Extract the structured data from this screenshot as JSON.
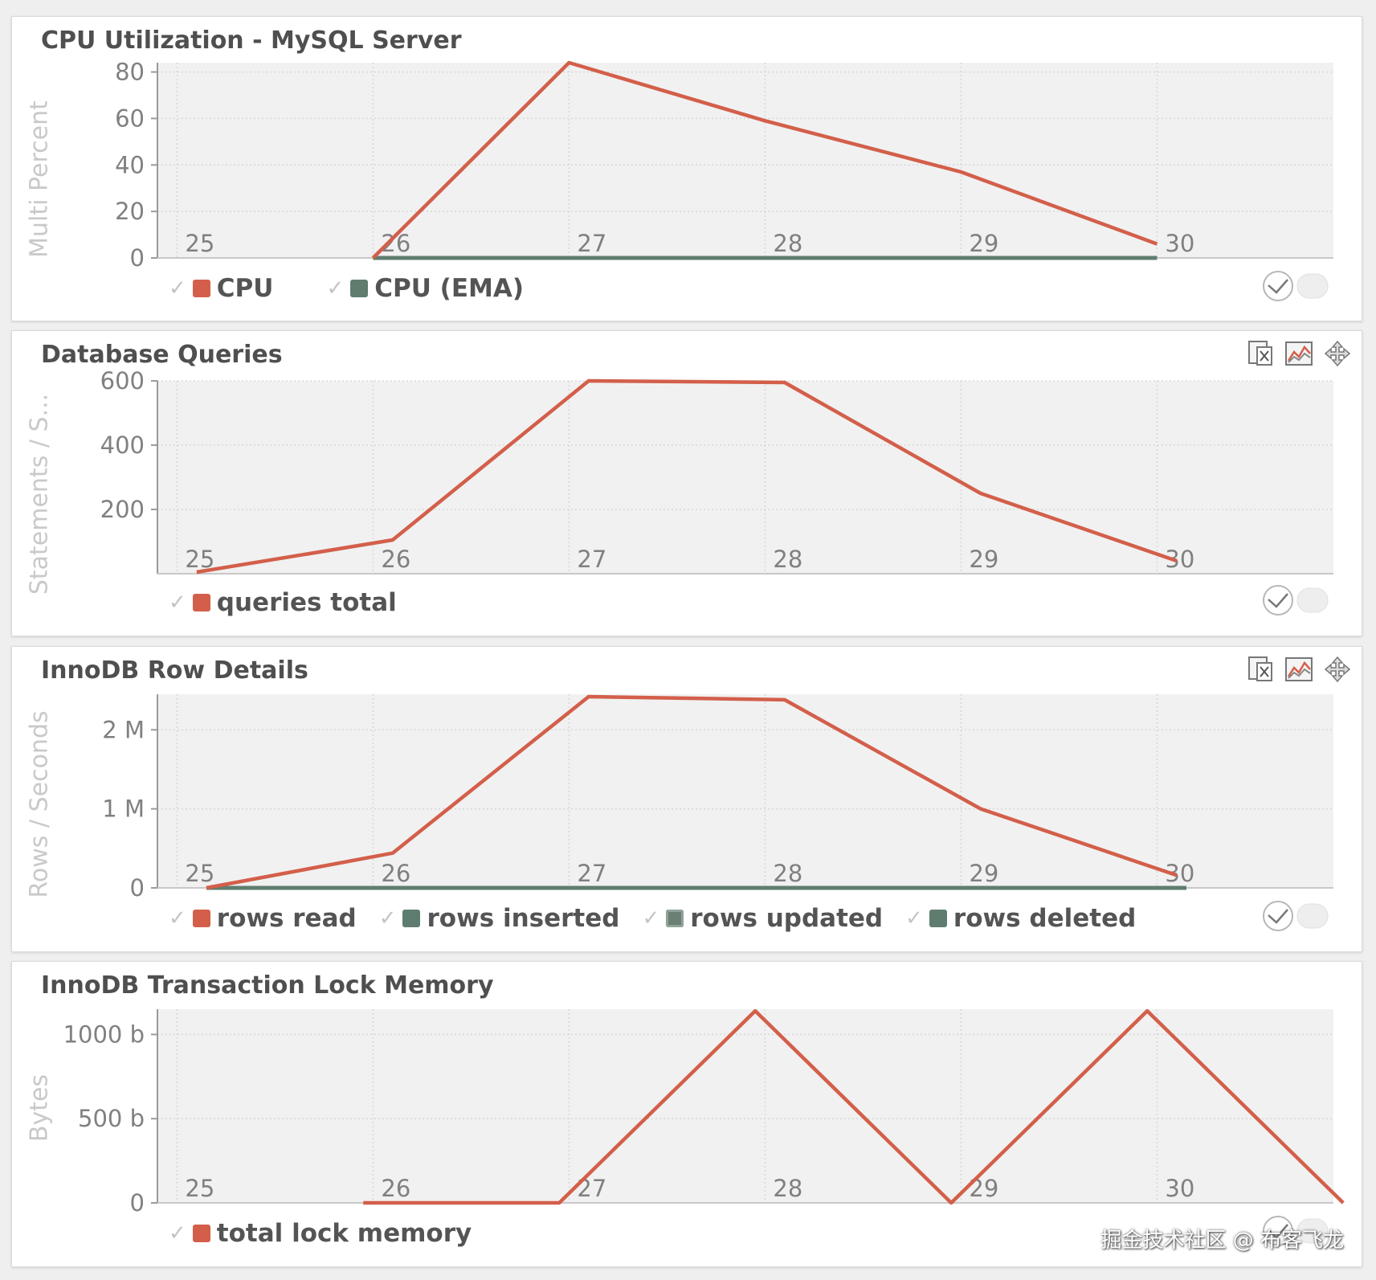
{
  "colors": {
    "red": "#d35f4a",
    "green": "#5f7d6f",
    "grid_bg": "#f1f1f1",
    "gridline": "#d7d7d7",
    "axis": "#9a9a9a",
    "tick_text": "#808080"
  },
  "icons": [
    "excel-export-icon",
    "chart-icon",
    "move-icon",
    "toggle-icon"
  ],
  "watermark": "掘金技术社区 @ 布客飞龙",
  "panels": [
    {
      "title": "CPU Utilization - MySQL Server",
      "ylabel": "Multi Percent",
      "show_toolbar": false,
      "legend": [
        {
          "label": "CPU",
          "color": "#d35f4a"
        },
        {
          "label": "CPU (EMA)",
          "color": "#5f7d6f"
        }
      ]
    },
    {
      "title": "Database Queries",
      "ylabel": "Statements / S...",
      "show_toolbar": true,
      "legend": [
        {
          "label": "queries total",
          "color": "#d35f4a"
        }
      ]
    },
    {
      "title": "InnoDB Row Details",
      "ylabel": "Rows / Seconds",
      "show_toolbar": true,
      "legend": [
        {
          "label": "rows read",
          "color": "#d35f4a"
        },
        {
          "label": "rows inserted",
          "color": "#5f7d6f"
        },
        {
          "label": "rows updated",
          "color": "#6b7f74"
        },
        {
          "label": "rows deleted",
          "color": "#5f7d6f"
        }
      ]
    },
    {
      "title": "InnoDB Transaction Lock Memory",
      "ylabel": "Bytes",
      "show_toolbar": false,
      "legend": [
        {
          "label": "total lock memory",
          "color": "#d35f4a"
        }
      ]
    }
  ],
  "chart_data": [
    {
      "type": "line",
      "title": "CPU Utilization - MySQL Server",
      "ylabel": "Multi Percent",
      "xlim": [
        24.9,
        30.9
      ],
      "ylim": [
        0,
        84
      ],
      "x_ticks": [
        25,
        26,
        27,
        28,
        29,
        30
      ],
      "x_tick_labels": [
        "25",
        "26",
        "27",
        "28",
        "29",
        "30"
      ],
      "y_ticks": [
        0,
        20,
        40,
        60,
        80
      ],
      "y_tick_labels": [
        "0",
        "20",
        "40",
        "60",
        "80"
      ],
      "grid": true,
      "series": [
        {
          "name": "CPU",
          "color": "#d35f4a",
          "x": [
            26,
            27,
            28,
            29,
            30
          ],
          "y": [
            0,
            84,
            59,
            37,
            6
          ]
        },
        {
          "name": "CPU (EMA)",
          "color": "#5f7d6f",
          "x": [
            26,
            30
          ],
          "y": [
            0,
            0
          ]
        }
      ]
    },
    {
      "type": "line",
      "title": "Database Queries",
      "ylabel": "Statements / S...",
      "xlim": [
        24.9,
        30.9
      ],
      "ylim": [
        0,
        600
      ],
      "x_ticks": [
        25,
        26,
        27,
        28,
        29,
        30
      ],
      "x_tick_labels": [
        "25",
        "26",
        "27",
        "28",
        "29",
        "30"
      ],
      "y_ticks": [
        200,
        400,
        600
      ],
      "y_tick_labels": [
        "200",
        "400",
        "600"
      ],
      "grid": true,
      "series": [
        {
          "name": "queries total",
          "color": "#d35f4a",
          "x": [
            25.1,
            26.1,
            27.1,
            28.1,
            29.1,
            30.1
          ],
          "y": [
            5,
            105,
            600,
            595,
            250,
            40
          ]
        }
      ]
    },
    {
      "type": "line",
      "title": "InnoDB Row Details",
      "ylabel": "Rows / Seconds",
      "xlim": [
        24.9,
        30.9
      ],
      "ylim": [
        0,
        2450000
      ],
      "x_ticks": [
        25,
        26,
        27,
        28,
        29,
        30
      ],
      "x_tick_labels": [
        "25",
        "26",
        "27",
        "28",
        "29",
        "30"
      ],
      "y_ticks": [
        0,
        1000000,
        2000000
      ],
      "y_tick_labels": [
        "0",
        "1 M",
        "2 M"
      ],
      "grid": true,
      "series": [
        {
          "name": "rows read",
          "color": "#d35f4a",
          "x": [
            25.15,
            26.1,
            27.1,
            28.1,
            29.1,
            30.1
          ],
          "y": [
            0,
            440000,
            2420000,
            2380000,
            1000000,
            160000
          ]
        },
        {
          "name": "rows inserted",
          "color": "#5f7d6f",
          "x": [
            25.15,
            30.15
          ],
          "y": [
            0,
            0
          ]
        },
        {
          "name": "rows updated",
          "color": "#6b7f74",
          "x": [
            25.15,
            30.15
          ],
          "y": [
            0,
            0
          ]
        },
        {
          "name": "rows deleted",
          "color": "#5f7d6f",
          "x": [
            25.15,
            30.15
          ],
          "y": [
            0,
            0
          ]
        }
      ]
    },
    {
      "type": "line",
      "title": "InnoDB Transaction Lock Memory",
      "ylabel": "Bytes",
      "xlim": [
        24.9,
        30.9
      ],
      "ylim": [
        0,
        1150
      ],
      "x_ticks": [
        25,
        26,
        27,
        28,
        29,
        30
      ],
      "x_tick_labels": [
        "25",
        "26",
        "27",
        "28",
        "29",
        "30"
      ],
      "y_ticks": [
        0,
        500,
        1000
      ],
      "y_tick_labels": [
        "0",
        "500 b",
        "1000 b"
      ],
      "grid": true,
      "series": [
        {
          "name": "total lock memory",
          "color": "#d35f4a",
          "x": [
            25.95,
            26.95,
            27.95,
            28.95,
            29.95,
            30.95
          ],
          "y": [
            0,
            0,
            1140,
            0,
            1140,
            0
          ]
        }
      ]
    }
  ]
}
